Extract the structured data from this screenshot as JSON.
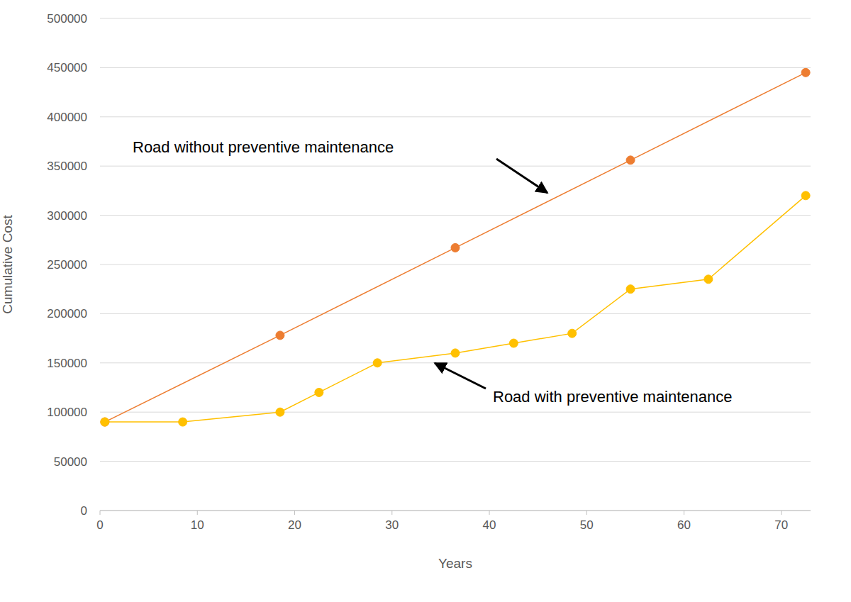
{
  "chart_data": {
    "type": "line",
    "x_label": "Years",
    "y_label": "Cumulative Cost",
    "xlim": [
      0,
      73
    ],
    "xticks": [
      0,
      10,
      20,
      30,
      40,
      50,
      60,
      70
    ],
    "ylim": [
      0,
      500000
    ],
    "yticks": [
      0,
      50000,
      100000,
      150000,
      200000,
      250000,
      300000,
      350000,
      400000,
      450000,
      500000
    ],
    "grid": true,
    "series": [
      {
        "name": "Road without preventive maintenance",
        "color": "#ED7D31",
        "marker": "circle",
        "x": [
          0.5,
          18.5,
          36.5,
          54.5,
          72.5
        ],
        "values": [
          90000,
          178000,
          267000,
          356000,
          445000
        ]
      },
      {
        "name": "Road with preventive maintenance",
        "color": "#FFC000",
        "marker": "circle",
        "x": [
          0.5,
          8.5,
          18.5,
          22.5,
          28.5,
          36.5,
          42.5,
          48.5,
          54.5,
          62.5,
          72.5
        ],
        "values": [
          90000,
          90000,
          100000,
          120000,
          150000,
          160000,
          170000,
          180000,
          225000,
          235000,
          320000
        ]
      }
    ]
  }
}
